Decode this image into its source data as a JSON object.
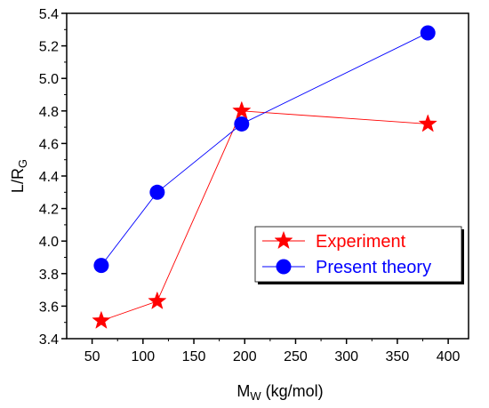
{
  "chart_data": {
    "type": "line",
    "xlabel": {
      "main": "M",
      "sub": "W",
      "rest": " (kg/mol)"
    },
    "ylabel": {
      "main": "L/R",
      "sub": "G"
    },
    "xlim": [
      25,
      420
    ],
    "ylim": [
      3.4,
      5.4
    ],
    "xticks": [
      50,
      100,
      150,
      200,
      250,
      300,
      350,
      400
    ],
    "yticks": [
      3.4,
      3.6,
      3.8,
      4.0,
      4.2,
      4.4,
      4.6,
      4.8,
      5.0,
      5.2,
      5.4
    ],
    "ytick_decimals": 1,
    "grid": false,
    "legend_position": "bottom-right",
    "series": [
      {
        "name": "Experiment",
        "color": "#ff0000",
        "marker": "star",
        "points": [
          [
            59,
            3.51
          ],
          [
            114,
            3.63
          ],
          [
            197,
            4.8
          ],
          [
            380,
            4.72
          ]
        ]
      },
      {
        "name": "Present theory",
        "color": "#0000ff",
        "marker": "circle",
        "points": [
          [
            59,
            3.85
          ],
          [
            114,
            4.3
          ],
          [
            197,
            4.72
          ],
          [
            380,
            5.28
          ]
        ]
      }
    ]
  }
}
